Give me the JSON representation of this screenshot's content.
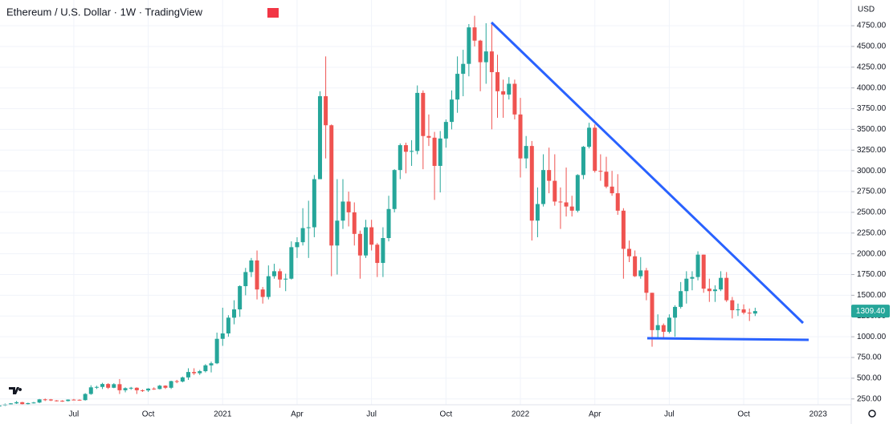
{
  "chart_data": {
    "type": "candlestick",
    "title": "Ethereum / U.S. Dollar · 1W · TradingView",
    "currency": "USD",
    "up_color": "#26a69a",
    "down_color": "#ef5350",
    "grid": true,
    "categories": [
      null,
      null,
      null,
      null,
      null,
      null,
      null,
      null,
      null,
      null,
      null,
      null,
      null,
      "Jul",
      null,
      null,
      null,
      null,
      null,
      null,
      null,
      null,
      null,
      null,
      null,
      null,
      "Oct",
      null,
      null,
      null,
      null,
      null,
      null,
      null,
      null,
      null,
      null,
      null,
      null,
      "2021",
      null,
      null,
      null,
      null,
      null,
      null,
      null,
      null,
      null,
      null,
      null,
      null,
      "Apr",
      null,
      null,
      null,
      null,
      null,
      null,
      null,
      null,
      null,
      null,
      null,
      null,
      "Jul",
      null,
      null,
      null,
      null,
      null,
      null,
      null,
      null,
      null,
      null,
      null,
      null,
      "Oct",
      null,
      null,
      null,
      null,
      null,
      null,
      null,
      null,
      null,
      null,
      null,
      null,
      "2022",
      null,
      null,
      null,
      null,
      null,
      null,
      null,
      null,
      null,
      null,
      null,
      null,
      "Apr",
      null,
      null,
      null,
      null,
      null,
      null,
      null,
      null,
      null,
      null,
      null,
      null,
      "Jul",
      null,
      null,
      null,
      null,
      null,
      null,
      null,
      null,
      null,
      null,
      null,
      null,
      "Oct",
      null,
      null,
      null,
      null,
      null,
      null,
      null,
      null,
      null,
      null,
      null,
      null,
      "2023"
    ],
    "open": [
      160,
      171,
      186,
      197,
      211,
      188,
      200,
      207,
      245,
      244,
      232,
      229,
      225,
      242,
      240,
      236,
      310,
      390,
      395,
      430,
      385,
      428,
      355,
      380,
      385,
      355,
      353,
      375,
      370,
      410,
      385,
      465,
      460,
      510,
      575,
      560,
      585,
      655,
      680,
      975,
      1040,
      1230,
      1330,
      1610,
      1780,
      1920,
      1570,
      1480,
      1730,
      1790,
      1690,
      1700,
      2080,
      2140,
      2310,
      2320,
      2900,
      3900,
      3550,
      2100,
      2400,
      2630,
      2500,
      2240,
      1980,
      2320,
      2110,
      1890,
      2190,
      2540,
      3010,
      3310,
      3230,
      3240,
      3940,
      3420,
      3400,
      3060,
      3390,
      3590,
      3860,
      4170,
      4290,
      4730,
      4570,
      4310,
      4440,
      4190,
      3960,
      3920,
      4050,
      3680,
      3150,
      3300,
      2400,
      2600,
      3010,
      2880,
      2630,
      2620,
      2570,
      2520,
      2950,
      3290,
      3520,
      3000,
      2990,
      2810,
      2730,
      2520,
      2060,
      1970,
      1730,
      1800,
      1530,
      1080,
      1140,
      1060,
      1230,
      1360,
      1550,
      1700,
      1720,
      1990,
      1580,
      1550,
      1570,
      1710,
      1440,
      1320,
      1330,
      1290,
      1280,
      null,
      null,
      null,
      null,
      null,
      null,
      null,
      null,
      null,
      null,
      null
    ],
    "high": [
      180,
      195,
      200,
      225,
      215,
      205,
      215,
      250,
      255,
      250,
      235,
      235,
      245,
      250,
      245,
      320,
      415,
      410,
      445,
      440,
      440,
      490,
      390,
      395,
      390,
      365,
      380,
      390,
      420,
      415,
      470,
      480,
      520,
      620,
      620,
      600,
      670,
      700,
      1050,
      1350,
      1260,
      1440,
      1620,
      1830,
      1950,
      2040,
      1600,
      1860,
      1880,
      1820,
      1760,
      2150,
      2200,
      2550,
      2640,
      2950,
      3960,
      4380,
      3560,
      2900,
      2900,
      2750,
      2620,
      2280,
      2410,
      2410,
      2130,
      2320,
      2700,
      3020,
      3330,
      3340,
      3370,
      4030,
      3970,
      3680,
      3470,
      3480,
      3620,
      3970,
      4380,
      4460,
      4770,
      4870,
      4580,
      4780,
      4780,
      4400,
      4100,
      4130,
      4100,
      3880,
      3420,
      3360,
      2800,
      3200,
      3280,
      3200,
      2800,
      3040,
      2700,
      2960,
      3300,
      3580,
      3560,
      3200,
      3170,
      3000,
      2960,
      2550,
      2160,
      2040,
      1960,
      1830,
      1530,
      1270,
      1160,
      1270,
      1380,
      1660,
      1790,
      1790,
      2030,
      1990,
      1700,
      1620,
      1790,
      1780,
      1480,
      1400,
      1390,
      1340,
      1350,
      null,
      null,
      null,
      null,
      null,
      null,
      null,
      null,
      null,
      null,
      null
    ],
    "low": [
      150,
      165,
      180,
      190,
      180,
      180,
      195,
      200,
      225,
      225,
      220,
      215,
      220,
      235,
      230,
      230,
      300,
      370,
      370,
      370,
      380,
      310,
      330,
      360,
      310,
      335,
      335,
      360,
      365,
      370,
      370,
      440,
      450,
      480,
      540,
      540,
      570,
      570,
      670,
      890,
      1000,
      1150,
      1240,
      1500,
      1720,
      1450,
      1400,
      1450,
      1700,
      1590,
      1550,
      1690,
      1950,
      2100,
      1950,
      2200,
      2900,
      3150,
      1730,
      1750,
      2300,
      2330,
      2100,
      1700,
      1950,
      2040,
      1720,
      1720,
      2150,
      2500,
      2900,
      2970,
      3060,
      3200,
      3020,
      3300,
      2650,
      2740,
      3280,
      3500,
      3700,
      3900,
      4140,
      4500,
      3960,
      4050,
      3500,
      3640,
      3640,
      3860,
      3620,
      2920,
      3030,
      2160,
      2200,
      2570,
      2730,
      2580,
      2300,
      2450,
      2450,
      2500,
      2900,
      3270,
      2980,
      2880,
      2790,
      2700,
      2470,
      1700,
      1900,
      1720,
      1700,
      1440,
      880,
      990,
      990,
      1040,
      1000,
      1340,
      1400,
      1560,
      1680,
      1530,
      1420,
      1420,
      1550,
      1420,
      1220,
      1250,
      1270,
      1190,
      1250,
      null,
      null,
      null,
      null,
      null,
      null,
      null,
      null,
      null,
      null,
      null
    ],
    "close": [
      171,
      186,
      197,
      211,
      188,
      200,
      207,
      245,
      244,
      232,
      229,
      225,
      242,
      240,
      236,
      310,
      390,
      395,
      430,
      385,
      428,
      355,
      380,
      385,
      355,
      353,
      375,
      370,
      410,
      385,
      465,
      460,
      510,
      575,
      560,
      585,
      655,
      680,
      975,
      1040,
      1230,
      1330,
      1610,
      1780,
      1920,
      1570,
      1480,
      1730,
      1790,
      1690,
      1700,
      2080,
      2140,
      2310,
      2320,
      2900,
      3900,
      3550,
      2100,
      2400,
      2630,
      2500,
      2240,
      1980,
      2320,
      2110,
      1890,
      2190,
      2540,
      3010,
      3310,
      3230,
      3240,
      3940,
      3420,
      3400,
      3060,
      3390,
      3590,
      3860,
      4170,
      4290,
      4730,
      4570,
      4310,
      4440,
      4190,
      3960,
      3920,
      4050,
      3680,
      3150,
      3300,
      2400,
      2600,
      3010,
      2880,
      2630,
      2620,
      2570,
      2520,
      2950,
      3290,
      3520,
      3000,
      2990,
      2810,
      2730,
      2520,
      2060,
      1970,
      1730,
      1800,
      1530,
      1080,
      1140,
      1060,
      1230,
      1360,
      1550,
      1700,
      1720,
      1990,
      1580,
      1550,
      1570,
      1710,
      1440,
      1320,
      1330,
      1290,
      1280,
      1309.4,
      null,
      null,
      null,
      null,
      null,
      null,
      null,
      null,
      null,
      null,
      null
    ],
    "last_price_label": "1309.40",
    "ylim": [
      180,
      5060
    ],
    "yticks": [
      {
        "value": 250,
        "label": "250.00"
      },
      {
        "value": 500,
        "label": "500.00"
      },
      {
        "value": 750,
        "label": "750.00"
      },
      {
        "value": 1000,
        "label": "1000.00"
      },
      {
        "value": 1250,
        "label": "1250.00"
      },
      {
        "value": 1500,
        "label": "1500.00"
      },
      {
        "value": 1750,
        "label": "1750.00"
      },
      {
        "value": 2000,
        "label": "2000.00"
      },
      {
        "value": 2250,
        "label": "2250.00"
      },
      {
        "value": 2500,
        "label": "2500.00"
      },
      {
        "value": 2750,
        "label": "2750.00"
      },
      {
        "value": 3000,
        "label": "3000.00"
      },
      {
        "value": 3250,
        "label": "3250.00"
      },
      {
        "value": 3500,
        "label": "3500.00"
      },
      {
        "value": 3750,
        "label": "3750.00"
      },
      {
        "value": 4000,
        "label": "4000.00"
      },
      {
        "value": 4250,
        "label": "4250.00"
      },
      {
        "value": 4500,
        "label": "4500.00"
      },
      {
        "value": 4750,
        "label": "4750.00"
      }
    ]
  }
}
